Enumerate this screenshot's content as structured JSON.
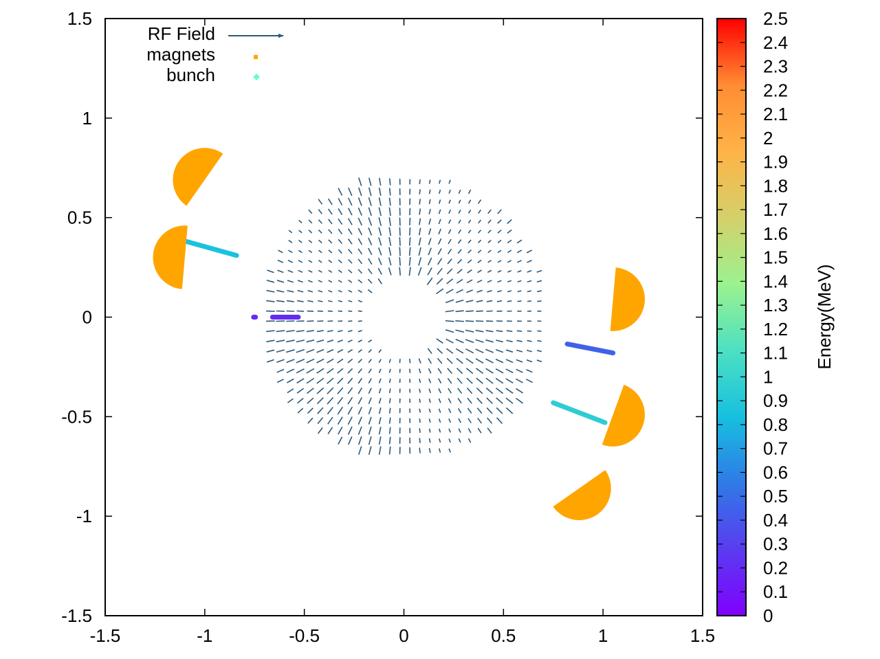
{
  "chart_data": {
    "type": "scatter",
    "title": "",
    "xlabel": "",
    "ylabel": "",
    "xlim": [
      -1.5,
      1.5
    ],
    "ylim": [
      -1.5,
      1.5
    ],
    "grid": false,
    "legend_position": "top-left",
    "x_ticks": [
      "-1.5",
      "-1",
      "-0.5",
      "0",
      "0.5",
      "1",
      "1.5"
    ],
    "y_ticks": [
      "1.5",
      "1",
      "0.5",
      "0",
      "-0.5",
      "-1",
      "-1.5"
    ],
    "legend": [
      {
        "label": "RF Field",
        "marker": "arrow",
        "color": "#2c5878"
      },
      {
        "label": "magnets",
        "marker": "square",
        "color": "#ffa500"
      },
      {
        "label": "bunch",
        "marker": "diamond",
        "color": "#66ffcc"
      }
    ],
    "colorbar": {
      "label": "Energy(MeV)",
      "min": 0,
      "max": 2.5,
      "ticks": [
        "2.5",
        "2.4",
        "2.3",
        "2.2",
        "2.1",
        "2",
        "1.9",
        "1.8",
        "1.7",
        "1.6",
        "1.5",
        "1.4",
        "1.3",
        "1.2",
        "1.1",
        "1",
        "0.9",
        "0.8",
        "0.7",
        "0.6",
        "0.5",
        "0.4",
        "0.3",
        "0.2",
        "0.1",
        "0"
      ],
      "colors": [
        "#ff0000",
        "#ff8c33",
        "#ffb347",
        "#d4d06a",
        "#9bf28f",
        "#4de0c2",
        "#17c0e0",
        "#2f7ae6",
        "#5a3cf0",
        "#8000ff"
      ]
    },
    "rf_field": {
      "color": "#2c5878",
      "inner_radius": 0.2,
      "outer_radius": 0.72,
      "grid_step": 0.05
    },
    "magnets": {
      "color": "#ffa500",
      "radius": 0.16,
      "sectors": [
        {
          "center": [
            -1.0,
            0.69
          ],
          "start_deg": 55,
          "end_deg": 235
        },
        {
          "center": [
            -1.1,
            0.3
          ],
          "start_deg": 85,
          "end_deg": 265
        },
        {
          "center": [
            1.05,
            0.09
          ],
          "start_deg": 265,
          "end_deg": 445
        },
        {
          "center": [
            1.05,
            -0.49
          ],
          "start_deg": 250,
          "end_deg": 430
        },
        {
          "center": [
            0.88,
            -0.86
          ],
          "start_deg": 215,
          "end_deg": 395
        }
      ]
    },
    "bunches": [
      {
        "energy": 0.2,
        "points": [
          [
            -0.66,
            0.0
          ],
          [
            -0.53,
            0.0
          ]
        ]
      },
      {
        "energy": 0.2,
        "points": [
          [
            -0.755,
            0.0
          ],
          [
            -0.745,
            0.0
          ]
        ]
      },
      {
        "energy": 0.85,
        "points": [
          [
            -1.11,
            0.385
          ],
          [
            -0.84,
            0.31
          ]
        ]
      },
      {
        "energy": 0.45,
        "points": [
          [
            0.82,
            -0.135
          ],
          [
            1.05,
            -0.18
          ]
        ]
      },
      {
        "energy": 0.95,
        "points": [
          [
            0.75,
            -0.43
          ],
          [
            1.01,
            -0.53
          ]
        ]
      }
    ]
  }
}
